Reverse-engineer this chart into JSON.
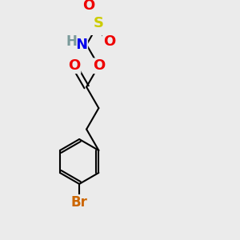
{
  "background_color": "#ebebeb",
  "atom_colors": {
    "C": "#000000",
    "H": "#7a9a9a",
    "N": "#0000ee",
    "O": "#ee0000",
    "S": "#cccc00",
    "Br": "#cc6600"
  },
  "bond_color": "#000000",
  "bond_width": 1.5,
  "font_size_atoms": 13,
  "figsize": [
    3.0,
    3.0
  ],
  "dpi": 100
}
